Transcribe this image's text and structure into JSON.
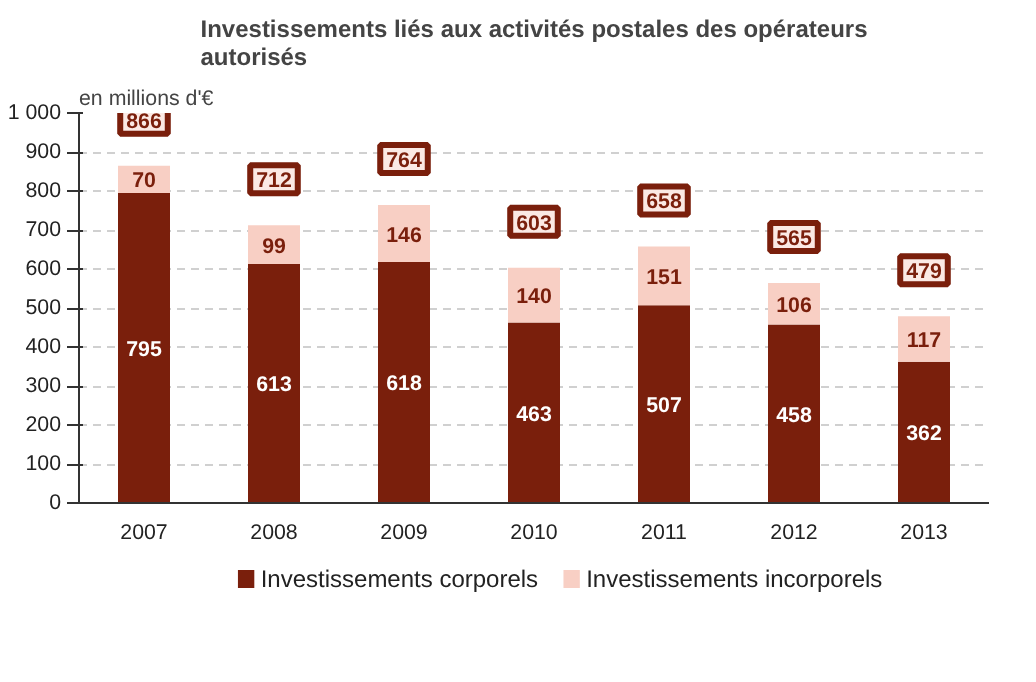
{
  "chart_data": {
    "type": "bar",
    "stacked": true,
    "title": "Investissements liés aux activités postales des opérateurs autorisés",
    "ylabel": "en millions d'€",
    "categories": [
      "2007",
      "2008",
      "2009",
      "2010",
      "2011",
      "2012",
      "2013"
    ],
    "series": [
      {
        "name": "Investissements corporels",
        "color": "#7a1f0c",
        "values": [
          795,
          613,
          618,
          463,
          507,
          458,
          362
        ]
      },
      {
        "name": "Investissements incorporels",
        "color": "#f8cfc4",
        "values": [
          70,
          99,
          146,
          140,
          151,
          106,
          117
        ]
      }
    ],
    "totals": [
      "866",
      "712",
      "764",
      "603",
      "658",
      "565",
      "479"
    ],
    "data_labels": true,
    "ylim": [
      0,
      1000
    ],
    "yticks": [
      0,
      100,
      200,
      300,
      400,
      500,
      600,
      700,
      800,
      900,
      {
        "value": 1000,
        "label": "1 000"
      }
    ],
    "grid": "y",
    "legend": "bottom"
  }
}
